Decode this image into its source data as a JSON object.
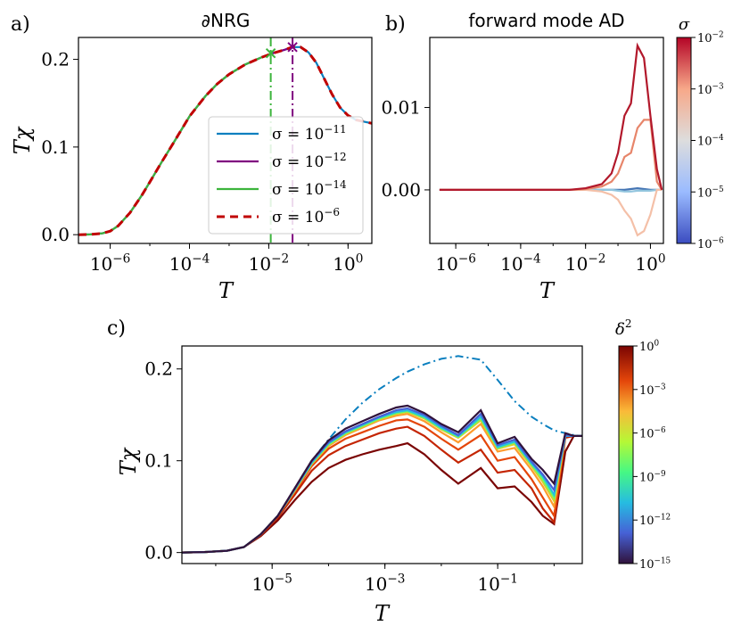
{
  "panels": {
    "a": {
      "label": "a)",
      "title": "∂NRG",
      "xlabel": "T",
      "ylabel": "Tχ",
      "xticks": [
        {
          "e": -6,
          "base": "10",
          "exp": "−6"
        },
        {
          "e": -4,
          "base": "10",
          "exp": "−4"
        },
        {
          "e": -2,
          "base": "10",
          "exp": "−2"
        },
        {
          "e": 0,
          "base": "10",
          "exp": "0"
        }
      ],
      "yticks": [
        {
          "v": 0.0,
          "label": "0.0"
        },
        {
          "v": 0.1,
          "label": "0.1"
        },
        {
          "v": 0.2,
          "label": "0.2"
        }
      ],
      "legend": [
        {
          "label": "σ = 10",
          "exp": "−11",
          "color": "#0a7fbf",
          "dash": ""
        },
        {
          "label": "σ = 10",
          "exp": "−12",
          "color": "#800080",
          "dash": ""
        },
        {
          "label": "σ = 10",
          "exp": "−14",
          "color": "#3cb43c",
          "dash": ""
        },
        {
          "label": "σ = 10",
          "exp": "−6",
          "color": "#c00000",
          "dash": "9,6"
        }
      ]
    },
    "b": {
      "label": "b)",
      "title": "forward mode AD",
      "xlabel": "T",
      "xticks": [
        {
          "e": -6,
          "base": "10",
          "exp": "−6"
        },
        {
          "e": -4,
          "base": "10",
          "exp": "−4"
        },
        {
          "e": -2,
          "base": "10",
          "exp": "−2"
        },
        {
          "e": 0,
          "base": "10",
          "exp": "0"
        }
      ],
      "yticks": [
        {
          "v": 0.0,
          "label": "0.00"
        },
        {
          "v": 0.01,
          "label": "0.01"
        }
      ],
      "colorbar": {
        "label": "σ",
        "ticks": [
          {
            "base": "10",
            "exp": "−2"
          },
          {
            "base": "10",
            "exp": "−3"
          },
          {
            "base": "10",
            "exp": "−4"
          },
          {
            "base": "10",
            "exp": "−5"
          },
          {
            "base": "10",
            "exp": "−6"
          }
        ]
      }
    },
    "c": {
      "label": "c)",
      "xlabel": "T",
      "ylabel": "Tχ",
      "xticks": [
        {
          "e": -5,
          "base": "10",
          "exp": "−5"
        },
        {
          "e": -3,
          "base": "10",
          "exp": "−3"
        },
        {
          "e": -1,
          "base": "10",
          "exp": "−1"
        }
      ],
      "yticks": [
        {
          "v": 0.0,
          "label": "0.0"
        },
        {
          "v": 0.1,
          "label": "0.1"
        },
        {
          "v": 0.2,
          "label": "0.2"
        }
      ],
      "colorbar": {
        "label": "δ",
        "label_exp": "2",
        "ticks": [
          {
            "base": "10",
            "exp": "0"
          },
          {
            "base": "10",
            "exp": "−3"
          },
          {
            "base": "10",
            "exp": "−6"
          },
          {
            "base": "10",
            "exp": "−9"
          },
          {
            "base": "10",
            "exp": "−12"
          },
          {
            "base": "10",
            "exp": "−15"
          }
        ]
      }
    }
  },
  "chart_data": [
    {
      "panel": "a",
      "type": "line",
      "title": "∂NRG",
      "xlabel": "T",
      "ylabel": "Tχ",
      "xscale": "log",
      "xlim_log10": [
        -6.8,
        0.6
      ],
      "ylim": [
        -0.01,
        0.225
      ],
      "logT": [
        -6.8,
        -6.5,
        -6.2,
        -6.0,
        -5.8,
        -5.5,
        -5.2,
        -5.0,
        -4.7,
        -4.4,
        -4.0,
        -3.6,
        -3.3,
        -3.0,
        -2.6,
        -2.2,
        -1.9,
        -1.6,
        -1.4,
        -1.2,
        -1.0,
        -0.8,
        -0.6,
        -0.4,
        -0.2,
        0.0,
        0.2,
        0.4,
        0.6
      ],
      "series": [
        {
          "name": "σ = 10^−11",
          "color": "#0a7fbf",
          "values": [
            0,
            0.0003,
            0.0015,
            0.004,
            0.01,
            0.025,
            0.045,
            0.06,
            0.083,
            0.105,
            0.135,
            0.158,
            0.172,
            0.183,
            0.194,
            0.202,
            0.207,
            0.211,
            0.214,
            0.214,
            0.208,
            0.196,
            0.178,
            0.16,
            0.145,
            0.136,
            0.131,
            0.129,
            0.127
          ]
        },
        {
          "name": "σ = 10^−12",
          "color": "#800080",
          "values": [
            0,
            0.0003,
            0.0015,
            0.004,
            0.01,
            0.025,
            0.045,
            0.06,
            0.083,
            0.105,
            0.135,
            0.158,
            0.172,
            0.183,
            0.194,
            0.202,
            0.207,
            0.211,
            0.214
          ]
        },
        {
          "name": "σ = 10^−14",
          "color": "#3cb43c",
          "values": [
            0,
            0.0003,
            0.0015,
            0.004,
            0.01,
            0.025,
            0.045,
            0.06,
            0.083,
            0.105,
            0.135,
            0.158,
            0.172,
            0.183,
            0.194,
            0.202,
            0.207
          ]
        },
        {
          "name": "σ = 10^−6",
          "color": "#c00000",
          "values": [
            0,
            0.0003,
            0.0015,
            0.004,
            0.01,
            0.025,
            0.045,
            0.06,
            0.083,
            0.105,
            0.135,
            0.158,
            0.172,
            0.183,
            0.194,
            0.202,
            0.207,
            0.211,
            0.214,
            0.214,
            0.208,
            0.196,
            0.178,
            0.16,
            0.145,
            0.136,
            0.131,
            0.129,
            0.127
          ]
        }
      ],
      "markers": [
        {
          "color": "#3cb43c",
          "logT": -1.95,
          "y": 0.207
        },
        {
          "color": "#800080",
          "logT": -1.4,
          "y": 0.214
        }
      ]
    },
    {
      "panel": "b",
      "type": "line",
      "title": "forward mode AD",
      "xlabel": "T",
      "xscale": "log",
      "xlim_log10": [
        -6.8,
        0.4
      ],
      "ylim": [
        -0.0065,
        0.0185
      ],
      "logT": [
        -6.5,
        -5.5,
        -4.5,
        -3.5,
        -3.0,
        -2.5,
        -2.0,
        -1.5,
        -1.2,
        -1.0,
        -0.8,
        -0.6,
        -0.4,
        -0.2,
        0.0,
        0.2,
        0.35
      ],
      "series": [
        {
          "sigma_exp": -2,
          "color": "#b2182b",
          "values": [
            0,
            0,
            0,
            0,
            0,
            0,
            0.0002,
            0.0007,
            0.002,
            0.0045,
            0.009,
            0.0105,
            0.0175,
            0.016,
            0.009,
            0.0025,
            0
          ]
        },
        {
          "sigma_exp": -2.6,
          "color": "#e7856a",
          "values": [
            0,
            0,
            0,
            0,
            0,
            0,
            0.0001,
            0.0004,
            0.001,
            0.002,
            0.004,
            0.0045,
            0.0075,
            0.0085,
            0.0085,
            0.001,
            0
          ]
        },
        {
          "sigma_exp": -3.5,
          "color": "#f4c0a8",
          "values": [
            0,
            0,
            0,
            0,
            0,
            0,
            0,
            -0.0002,
            -0.0006,
            -0.0012,
            -0.0025,
            -0.0035,
            -0.0055,
            -0.005,
            -0.003,
            0,
            0
          ]
        },
        {
          "sigma_exp": -5,
          "color": "#92c5de",
          "values": [
            0,
            0,
            0,
            0,
            0,
            0,
            0,
            0,
            0,
            -0.0001,
            -0.0002,
            -0.0002,
            -0.0001,
            -0.0001,
            -0.0001,
            0,
            0
          ]
        },
        {
          "sigma_exp": -6,
          "color": "#4575b4",
          "values": [
            0,
            0,
            0,
            0,
            0,
            0,
            0,
            0,
            0,
            0,
            0,
            0.0001,
            0.0002,
            0.0001,
            0,
            0,
            0
          ]
        }
      ],
      "colorbar": {
        "label": "σ",
        "scale": "log",
        "range_exp": [
          -6,
          -2
        ]
      }
    },
    {
      "panel": "c",
      "type": "line",
      "xlabel": "T",
      "ylabel": "Tχ",
      "xscale": "log",
      "xlim_log10": [
        -6.6,
        0.5
      ],
      "ylim": [
        -0.012,
        0.225
      ],
      "logT": [
        -6.6,
        -6.2,
        -5.8,
        -5.5,
        -5.2,
        -4.9,
        -4.6,
        -4.3,
        -4.0,
        -3.7,
        -3.4,
        -3.1,
        -2.8,
        -2.6,
        -2.3,
        -2.0,
        -1.7,
        -1.3,
        -1.0,
        -0.7,
        -0.4,
        -0.2,
        0.0,
        0.2,
        0.35,
        0.5
      ],
      "reference": {
        "color": "#0a7fbf",
        "dash": "dash-dot",
        "values": [
          0,
          0.0005,
          0.002,
          0.006,
          0.02,
          0.04,
          0.07,
          0.1,
          0.123,
          0.145,
          0.163,
          0.178,
          0.19,
          0.197,
          0.205,
          0.211,
          0.214,
          0.21,
          0.188,
          0.165,
          0.148,
          0.14,
          0.133,
          0.13,
          0.128,
          0.127
        ]
      },
      "series": [
        {
          "delta2_exp": -15,
          "color": "#30123b",
          "values": [
            0,
            0.0005,
            0.002,
            0.006,
            0.02,
            0.04,
            0.07,
            0.1,
            0.122,
            0.135,
            0.143,
            0.151,
            0.158,
            0.16,
            0.152,
            0.14,
            0.131,
            0.155,
            0.119,
            0.126,
            0.102,
            0.09,
            0.075,
            0.13,
            0.127,
            0.127
          ]
        },
        {
          "delta2_exp": -12,
          "color": "#4661d6",
          "values": [
            0,
            0.0005,
            0.002,
            0.006,
            0.02,
            0.04,
            0.069,
            0.099,
            0.12,
            0.132,
            0.14,
            0.148,
            0.155,
            0.157,
            0.15,
            0.138,
            0.128,
            0.151,
            0.117,
            0.123,
            0.099,
            0.085,
            0.068,
            0.128,
            0.127,
            0.127
          ]
        },
        {
          "delta2_exp": -10,
          "color": "#26bce1",
          "values": [
            0,
            0.0005,
            0.002,
            0.006,
            0.02,
            0.04,
            0.069,
            0.098,
            0.119,
            0.131,
            0.139,
            0.147,
            0.153,
            0.155,
            0.148,
            0.136,
            0.127,
            0.148,
            0.115,
            0.121,
            0.097,
            0.083,
            0.063,
            0.127,
            0.127,
            0.127
          ]
        },
        {
          "delta2_exp": -8,
          "color": "#62fc6b",
          "values": [
            0,
            0.0005,
            0.002,
            0.006,
            0.02,
            0.04,
            0.068,
            0.097,
            0.118,
            0.13,
            0.138,
            0.146,
            0.152,
            0.154,
            0.147,
            0.135,
            0.126,
            0.146,
            0.114,
            0.12,
            0.096,
            0.08,
            0.06,
            0.127,
            0.127,
            0.127
          ]
        },
        {
          "delta2_exp": -6,
          "color": "#d4d02b",
          "values": [
            0,
            0.0005,
            0.002,
            0.006,
            0.02,
            0.04,
            0.068,
            0.097,
            0.117,
            0.129,
            0.137,
            0.145,
            0.151,
            0.153,
            0.146,
            0.134,
            0.125,
            0.144,
            0.113,
            0.118,
            0.094,
            0.077,
            0.056,
            0.127,
            0.127,
            0.127
          ]
        },
        {
          "delta2_exp": -4.5,
          "color": "#fe9b2d",
          "values": [
            0,
            0.0005,
            0.002,
            0.006,
            0.02,
            0.04,
            0.067,
            0.096,
            0.116,
            0.128,
            0.136,
            0.144,
            0.149,
            0.151,
            0.143,
            0.131,
            0.12,
            0.14,
            0.11,
            0.114,
            0.09,
            0.072,
            0.05,
            0.127,
            0.127,
            0.127
          ]
        },
        {
          "delta2_exp": -3,
          "color": "#e4460a",
          "values": [
            0,
            0.0005,
            0.002,
            0.006,
            0.02,
            0.04,
            0.066,
            0.094,
            0.113,
            0.124,
            0.131,
            0.138,
            0.144,
            0.145,
            0.137,
            0.124,
            0.112,
            0.128,
            0.1,
            0.104,
            0.08,
            0.06,
            0.04,
            0.127,
            0.127,
            0.127
          ]
        },
        {
          "delta2_exp": -1.5,
          "color": "#c42503",
          "values": [
            0,
            0.0005,
            0.002,
            0.006,
            0.019,
            0.038,
            0.063,
            0.089,
            0.106,
            0.116,
            0.123,
            0.13,
            0.135,
            0.137,
            0.127,
            0.112,
            0.098,
            0.112,
            0.087,
            0.09,
            0.07,
            0.048,
            0.033,
            0.125,
            0.127,
            0.127
          ]
        },
        {
          "delta2_exp": 0,
          "color": "#7a0403",
          "values": [
            0,
            0.0005,
            0.002,
            0.006,
            0.018,
            0.035,
            0.057,
            0.077,
            0.092,
            0.101,
            0.107,
            0.112,
            0.116,
            0.119,
            0.107,
            0.09,
            0.075,
            0.092,
            0.07,
            0.072,
            0.055,
            0.04,
            0.031,
            0.11,
            0.127,
            0.127
          ]
        }
      ],
      "colorbar": {
        "label": "δ²",
        "scale": "log",
        "range_exp": [
          -15,
          0
        ]
      }
    }
  ]
}
